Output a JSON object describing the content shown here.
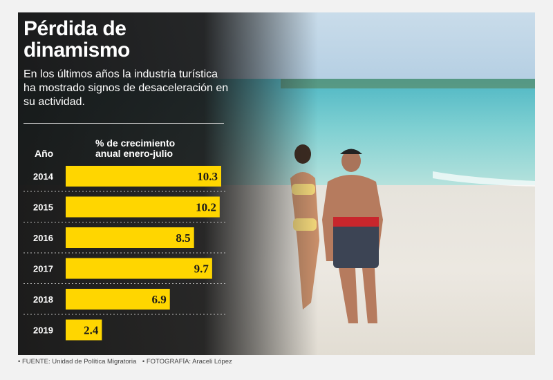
{
  "header": {
    "title_line1": "Pérdida de",
    "title_line2": "dinamismo",
    "subtitle": "En los últimos años la industria turística ha mostrado signos de desaceleración en su actividad."
  },
  "table": {
    "year_header": "Año",
    "value_header_line1": "% de crecimiento",
    "value_header_line2": "anual enero-julio"
  },
  "colors": {
    "bar": "#ffd600",
    "panel": "#1e1e1e"
  },
  "chart_data": {
    "type": "bar",
    "orientation": "horizontal",
    "title": "Pérdida de dinamismo",
    "categories": [
      "2014",
      "2015",
      "2016",
      "2017",
      "2018",
      "2019"
    ],
    "values": [
      10.3,
      10.2,
      8.5,
      9.7,
      6.9,
      2.4
    ],
    "labels": [
      "10.3",
      "10.2",
      "8.5",
      "9.7",
      "6.9",
      "2.4"
    ],
    "xlabel": "% de crecimiento anual enero-julio",
    "ylabel": "Año",
    "xlim": [
      0,
      10.3
    ],
    "grid": false,
    "legend": "none"
  },
  "footer": {
    "source": "• FUENTE: Unidad de Política Migratoria",
    "photo": "• FOTOGRAFÍA: Araceli López"
  }
}
